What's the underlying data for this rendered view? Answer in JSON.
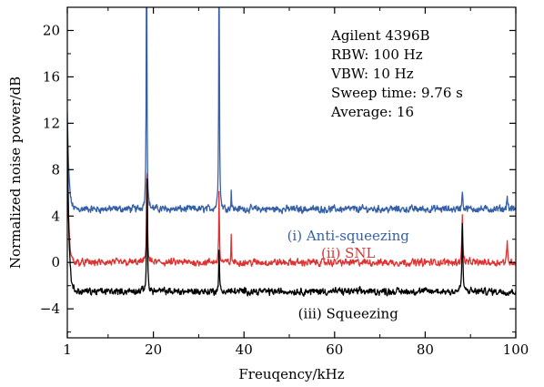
{
  "chart_data": {
    "type": "line",
    "xlabel": "Freuqency/kHz",
    "ylabel": "Normalized noise power/dB",
    "xlim": [
      1,
      100
    ],
    "ylim": [
      -6.5,
      22
    ],
    "xticks": [
      {
        "value": 1,
        "label": "1"
      },
      {
        "value": 20,
        "label": "20"
      },
      {
        "value": 40,
        "label": "40"
      },
      {
        "value": 60,
        "label": "60"
      },
      {
        "value": 80,
        "label": "80"
      },
      {
        "value": 100,
        "label": "100"
      }
    ],
    "yticks": [
      {
        "value": -4,
        "label": "−4"
      },
      {
        "value": 0,
        "label": "0"
      },
      {
        "value": 4,
        "label": "4"
      },
      {
        "value": 8,
        "label": "8"
      },
      {
        "value": 12,
        "label": "12"
      },
      {
        "value": 16,
        "label": "16"
      },
      {
        "value": 20,
        "label": "20"
      }
    ],
    "grid": false,
    "info_lines": [
      "Agilent 4396B",
      "RBW: 100 Hz",
      "VBW: 10 Hz",
      "Sweep time: 9.76 s",
      "Average: 16"
    ],
    "series": [
      {
        "name": "(i) Anti-squeezing",
        "color": "#3560a8",
        "baseline": 4.6,
        "noise": 0.35,
        "peaks": [
          {
            "x": 1.3,
            "y": 13,
            "w": 0.25
          },
          {
            "x": 18.5,
            "y": 30,
            "w": 0.22
          },
          {
            "x": 34.5,
            "y": 30,
            "w": 0.2
          },
          {
            "x": 37.2,
            "y": 6.5,
            "w": 0.15
          },
          {
            "x": 88.2,
            "y": 6.2,
            "w": 0.3
          },
          {
            "x": 98.1,
            "y": 5.8,
            "w": 0.3
          }
        ],
        "points": [
          [
            1,
            15.5
          ],
          [
            1.15,
            17
          ],
          [
            1.3,
            13.5
          ],
          [
            2,
            5.2
          ],
          [
            5,
            4.6
          ],
          [
            10,
            4.5
          ],
          [
            15,
            4.7
          ],
          [
            18,
            8
          ],
          [
            18.5,
            30
          ],
          [
            19,
            8
          ],
          [
            20,
            5
          ],
          [
            25,
            4.6
          ],
          [
            30,
            4.3
          ],
          [
            34,
            5
          ],
          [
            34.5,
            30
          ],
          [
            35,
            4.7
          ],
          [
            37.2,
            6.5
          ],
          [
            40,
            4.5
          ],
          [
            50,
            4.6
          ],
          [
            60,
            4.5
          ],
          [
            70,
            4.4
          ],
          [
            80,
            4.6
          ],
          [
            88.2,
            6.2
          ],
          [
            90,
            4.9
          ],
          [
            98.1,
            5.8
          ],
          [
            100,
            4.9
          ]
        ],
        "label_pos": {
          "x": 63,
          "y": 2.3
        }
      },
      {
        "name": "(ii) SNL",
        "color": "#e03030",
        "baseline": 0,
        "noise": 0.35,
        "peaks": [
          {
            "x": 1.2,
            "y": 8,
            "w": 0.3
          },
          {
            "x": 18.6,
            "y": 9,
            "w": 0.25
          },
          {
            "x": 34.5,
            "y": 6.5,
            "w": 0.2
          },
          {
            "x": 37.2,
            "y": 2.5,
            "w": 0.15
          },
          {
            "x": 88.2,
            "y": 3.9,
            "w": 0.3
          },
          {
            "x": 98.1,
            "y": 1.7,
            "w": 0.3
          }
        ],
        "points": [
          [
            1,
            8
          ],
          [
            2,
            1
          ],
          [
            5,
            0
          ],
          [
            10,
            0
          ],
          [
            15,
            0.2
          ],
          [
            18.6,
            9
          ],
          [
            20,
            0.5
          ],
          [
            25,
            0
          ],
          [
            30,
            -0.3
          ],
          [
            34.5,
            6.5
          ],
          [
            35,
            0
          ],
          [
            37.2,
            2.5
          ],
          [
            40,
            0
          ],
          [
            50,
            -0.2
          ],
          [
            60,
            0
          ],
          [
            70,
            0.1
          ],
          [
            80,
            0.2
          ],
          [
            88.2,
            3.9
          ],
          [
            90,
            0.3
          ],
          [
            98.1,
            1.7
          ],
          [
            100,
            0.3
          ]
        ],
        "label_pos": {
          "x": 63,
          "y": 0.8
        }
      },
      {
        "name": "(iii) Squeezing",
        "color": "#000000",
        "baseline": -2.5,
        "noise": 0.35,
        "peaks": [
          {
            "x": 1.1,
            "y": 12,
            "w": 0.25
          },
          {
            "x": 18.6,
            "y": 8.5,
            "w": 0.25
          },
          {
            "x": 34.5,
            "y": 1.5,
            "w": 0.2
          },
          {
            "x": 88.2,
            "y": 3.2,
            "w": 0.3
          }
        ],
        "points": [
          [
            1,
            12
          ],
          [
            2,
            -1.5
          ],
          [
            5,
            -2.5
          ],
          [
            10,
            -2.7
          ],
          [
            15,
            -2.5
          ],
          [
            18.6,
            8.5
          ],
          [
            20,
            -2
          ],
          [
            25,
            -2.6
          ],
          [
            30,
            -2.8
          ],
          [
            34.5,
            1.5
          ],
          [
            35,
            -2.5
          ],
          [
            40,
            -2.6
          ],
          [
            50,
            -2.7
          ],
          [
            60,
            -2.6
          ],
          [
            70,
            -2.5
          ],
          [
            80,
            -2.3
          ],
          [
            88.2,
            3.2
          ],
          [
            90,
            -1.8
          ],
          [
            95,
            -1.7
          ],
          [
            100,
            -2.2
          ]
        ],
        "label_pos": {
          "x": 63,
          "y": -4.4
        }
      }
    ]
  }
}
